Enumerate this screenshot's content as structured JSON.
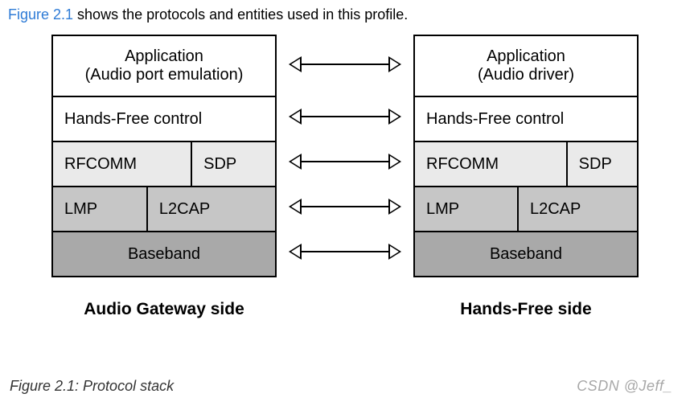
{
  "intro": {
    "figure_ref": "Figure 2.1",
    "text_after": " shows the protocols and entities used in this profile."
  },
  "diagram": {
    "type": "protocol-stack-pair",
    "colors": {
      "white": "#ffffff",
      "light": "#eaeaea",
      "mid": "#c6c6c6",
      "dark": "#a9a9a9",
      "border": "#000000"
    },
    "left": {
      "label": "Audio Gateway side",
      "layers": [
        {
          "cells": [
            "Application\n(Audio port emulation)"
          ],
          "bg": "white",
          "align": "center"
        },
        {
          "cells": [
            "Hands-Free control"
          ],
          "bg": "white",
          "align": "left"
        },
        {
          "cells": [
            "RFCOMM",
            "SDP"
          ],
          "bg": "light",
          "align": "left",
          "split": [
            0.62,
            0.38
          ]
        },
        {
          "cells": [
            "LMP",
            "L2CAP"
          ],
          "bg": "mid",
          "align": "left",
          "split": [
            0.42,
            0.58
          ]
        },
        {
          "cells": [
            "Baseband"
          ],
          "bg": "dark",
          "align": "center"
        }
      ]
    },
    "right": {
      "label": "Hands-Free side",
      "layers": [
        {
          "cells": [
            "Application\n(Audio driver)"
          ],
          "bg": "white",
          "align": "center"
        },
        {
          "cells": [
            "Hands-Free control"
          ],
          "bg": "white",
          "align": "left"
        },
        {
          "cells": [
            "RFCOMM",
            "SDP"
          ],
          "bg": "light",
          "align": "left",
          "split": [
            0.68,
            0.32
          ]
        },
        {
          "cells": [
            "LMP",
            "L2CAP"
          ],
          "bg": "mid",
          "align": "left",
          "split": [
            0.46,
            0.54
          ]
        },
        {
          "cells": [
            "Baseband"
          ],
          "bg": "dark",
          "align": "center"
        }
      ]
    },
    "arrow_count": 5
  },
  "caption": "Figure 2.1: Protocol stack",
  "watermark": "CSDN @Jeff_"
}
